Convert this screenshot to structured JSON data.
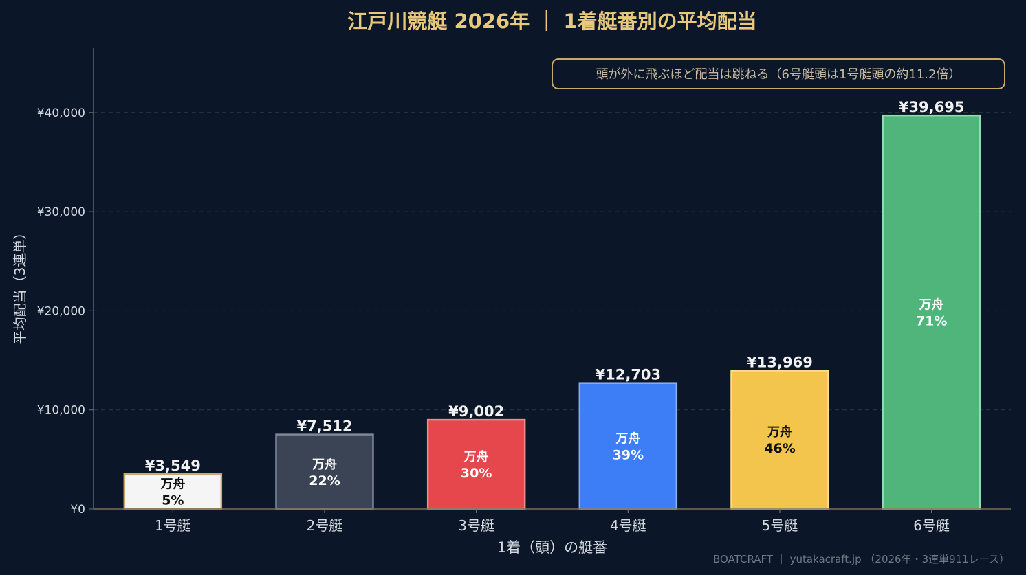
{
  "chart_data": {
    "type": "bar",
    "title": "江戸川競艇 2026年 ｜ 1着艇番別の平均配当",
    "xlabel": "1着（頭）の艇番",
    "ylabel": "平均配当（3連単）",
    "categories": [
      "1号艇",
      "2号艇",
      "3号艇",
      "4号艇",
      "5号艇",
      "6号艇"
    ],
    "values": [
      3549,
      7512,
      9002,
      12703,
      13969,
      39695
    ],
    "value_labels": [
      "¥3,549",
      "¥7,512",
      "¥9,002",
      "¥12,703",
      "¥13,969",
      "¥39,695"
    ],
    "inner_label_prefix": "万舟",
    "inner_labels": [
      "5%",
      "22%",
      "30%",
      "39%",
      "46%",
      "71%"
    ],
    "ylim": [
      0,
      46500
    ],
    "yticks": [
      0,
      10000,
      20000,
      30000,
      40000
    ],
    "ytick_labels": [
      "¥0",
      "¥10,000",
      "¥20,000",
      "¥30,000",
      "¥40,000"
    ],
    "grid": true,
    "annotation": "頭が外に飛ぶほど配当は跳ねる（6号艇頭は1号艇頭の約11.2倍）",
    "annotation_position": "top-right",
    "credit": "BOATCRAFT ｜ yutakacraft.jp （2026年・3連単911レース）",
    "colors": {
      "background": "#0b1728",
      "title": "#e8c87c",
      "text": "#d5d9e0",
      "grid": "#2a3a3f",
      "bars": [
        "#f5f5f5",
        "#3a4454",
        "#e5474d",
        "#3d7df5",
        "#f4c54c",
        "#4fb57a"
      ],
      "bar_edges": [
        "#c8a96a",
        "#7d8899",
        "#f08a8d",
        "#86aef9",
        "#f9df96",
        "#96d9b0"
      ],
      "inner_text": [
        "#111111",
        "#ffffff",
        "#ffffff",
        "#ffffff",
        "#111111",
        "#ffffff"
      ]
    }
  }
}
